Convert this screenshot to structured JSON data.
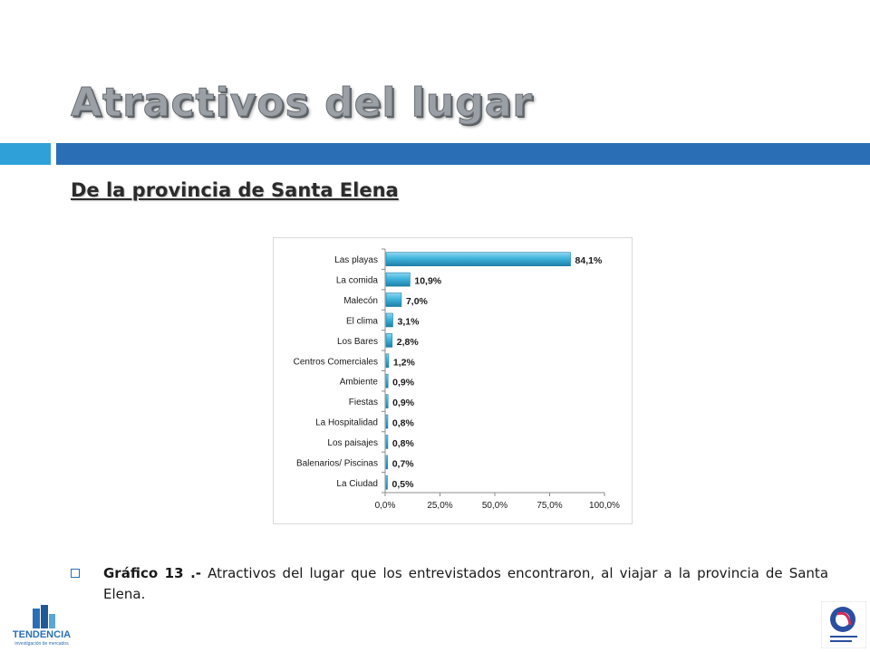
{
  "slide": {
    "title": "Atractivos del lugar",
    "subtitle": "De la provincia de Santa Elena",
    "caption_label": "Gráfico 13 .-",
    "caption_text": " Atractivos del lugar que los entrevistados encontraron, al viajar a la provincia de Santa Elena.",
    "logo_left_text": "TENDENCIA",
    "logo_left_subtext": "investigación de mercados"
  },
  "colors": {
    "accent_light": "#2fa1d8",
    "accent_dark": "#2a6fb6",
    "bar_fill": "#3fb4dc",
    "bar_edge": "#1e7fa8"
  },
  "chart_data": {
    "type": "bar",
    "orientation": "horizontal",
    "categories": [
      "Las playas",
      "La comida",
      "Malecón",
      "El clima",
      "Los Bares",
      "Centros Comerciales",
      "Ambiente",
      "Fiestas",
      "La Hospitalidad",
      "Los paisajes",
      "Balenarios/ Piscinas",
      "La Ciudad"
    ],
    "values": [
      84.1,
      10.9,
      7.0,
      3.1,
      2.8,
      1.2,
      0.9,
      0.9,
      0.8,
      0.8,
      0.7,
      0.5
    ],
    "value_labels": [
      "84,1%",
      "10,9%",
      "7,0%",
      "3,1%",
      "2,8%",
      "1,2%",
      "0,9%",
      "0,9%",
      "0,8%",
      "0,8%",
      "0,7%",
      "0,5%"
    ],
    "xlim": [
      0,
      100
    ],
    "xticks": [
      0,
      25,
      50,
      75,
      100
    ],
    "xtick_labels": [
      "0,0%",
      "25,0%",
      "50,0%",
      "75,0%",
      "100,0%"
    ],
    "grid": false,
    "legend": "none"
  }
}
